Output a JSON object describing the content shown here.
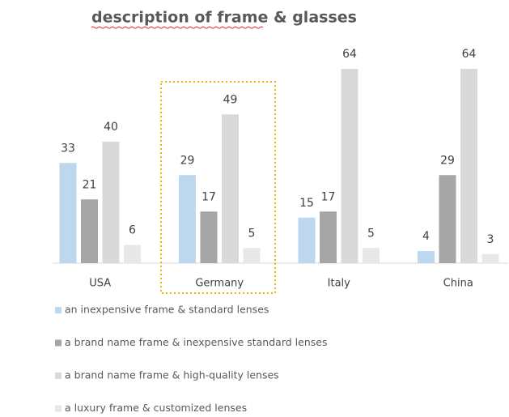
{
  "chart_data": {
    "type": "bar",
    "title": "description of frame & glasses",
    "categories": [
      "USA",
      "Germany",
      "Italy",
      "China"
    ],
    "series": [
      {
        "name": "an inexpensive frame & standard lenses",
        "color": "#bdd7ee",
        "values": [
          33,
          29,
          15,
          4
        ]
      },
      {
        "name": "a brand name frame & inexpensive standard lenses",
        "color": "#a6a6a6",
        "values": [
          21,
          17,
          17,
          29
        ]
      },
      {
        "name": "a brand name frame & high-quality lenses",
        "color": "#d9d9d9",
        "values": [
          40,
          49,
          64,
          64
        ]
      },
      {
        "name": "a luxury frame & customized lenses",
        "color": "#e8e8e8",
        "values": [
          6,
          5,
          5,
          3
        ]
      }
    ],
    "ylim": [
      0,
      70
    ],
    "legend": "bottom"
  }
}
